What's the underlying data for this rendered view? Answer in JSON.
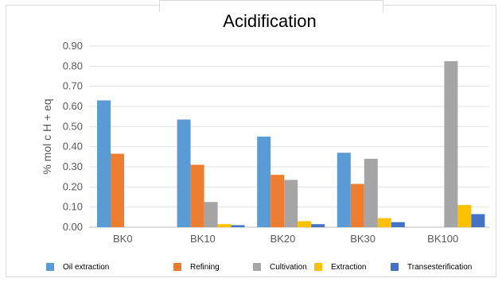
{
  "chart_data": {
    "type": "bar",
    "title": "Acidification",
    "xlabel": "",
    "ylabel": "% mol c H + eq",
    "ylim": [
      0,
      0.9
    ],
    "yticks": [
      "0.00",
      "0.10",
      "0.20",
      "0.30",
      "0.40",
      "0.50",
      "0.60",
      "0.70",
      "0.80",
      "0.90"
    ],
    "categories": [
      "BK0",
      "BK10",
      "BK20",
      "BK30",
      "BK100"
    ],
    "grid": true,
    "legend_position": "bottom",
    "series": [
      {
        "name": "Oil extraction",
        "color": "#5b9bd5",
        "values": [
          0.63,
          0.535,
          0.45,
          0.37,
          0
        ]
      },
      {
        "name": "Refining",
        "color": "#ed7d31",
        "values": [
          0.365,
          0.31,
          0.26,
          0.215,
          0
        ]
      },
      {
        "name": "Cultivation",
        "color": "#a5a5a5",
        "values": [
          0,
          0.125,
          0.235,
          0.34,
          0.825
        ]
      },
      {
        "name": "Extraction",
        "color": "#ffc000",
        "values": [
          0,
          0.015,
          0.03,
          0.045,
          0.11
        ]
      },
      {
        "name": "Transesterification",
        "color": "#4472c4",
        "values": [
          0,
          0.01,
          0.015,
          0.025,
          0.065
        ]
      }
    ]
  }
}
